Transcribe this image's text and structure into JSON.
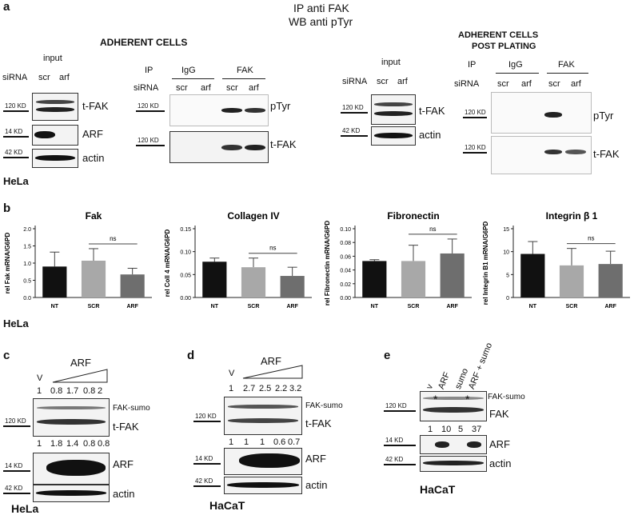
{
  "panel_labels": {
    "a": "a",
    "b": "b",
    "c": "c",
    "d": "d",
    "e": "e"
  },
  "header": {
    "line1": "IP anti FAK",
    "line2": "WB anti pTyr"
  },
  "panel_a": {
    "section_left": "ADHERENT CELLS",
    "section_right_1": "ADHERENT CELLS",
    "section_right_2": "POST PLATING",
    "input": "input",
    "sirna": "siRNA",
    "scr": "scr",
    "arf": "arf",
    "ip": "IP",
    "igg": "IgG",
    "fak": "FAK",
    "kd120": "120 KD",
    "kd14": "14 KD",
    "kd42": "42 KD",
    "tfak": "t-FAK",
    "arf_label": "ARF",
    "actin": "actin",
    "ptyr": "pTyr",
    "cell": "HeLa"
  },
  "panel_b": {
    "cell": "HeLa",
    "ns": "ns",
    "chart_data": [
      {
        "type": "bar",
        "title": "Fak",
        "ylabel": "rel Fak mRNA/G6PD",
        "categories": [
          "NT",
          "SCR",
          "ARF"
        ],
        "values": [
          0.9,
          1.07,
          0.67
        ],
        "errors": [
          0.42,
          0.35,
          0.18
        ],
        "ylim": [
          0,
          2.0
        ],
        "yticks": [
          "0.0",
          "0.5",
          "1.0",
          "1.5",
          "2.0"
        ],
        "colors": [
          "#111111",
          "#a8a8a8",
          "#6e6e6e"
        ]
      },
      {
        "type": "bar",
        "title": "Collagen IV",
        "ylabel": "rel Coll 4 mRNA/G6PD",
        "categories": [
          "NT",
          "SCR",
          "ARF"
        ],
        "values": [
          0.078,
          0.066,
          0.047
        ],
        "errors": [
          0.008,
          0.02,
          0.019
        ],
        "ylim": [
          0,
          0.15
        ],
        "yticks": [
          "0.00",
          "0.05",
          "0.10",
          "0.15"
        ],
        "colors": [
          "#111111",
          "#a8a8a8",
          "#6e6e6e"
        ]
      },
      {
        "type": "bar",
        "title": "Fibronectin",
        "ylabel": "rel Fibronectin mRNA/G6PD",
        "categories": [
          "NT",
          "SCR",
          "ARF"
        ],
        "values": [
          0.053,
          0.053,
          0.064
        ],
        "errors": [
          0.002,
          0.023,
          0.021
        ],
        "ylim": [
          0,
          0.1
        ],
        "yticks": [
          "0.00",
          "0.02",
          "0.04",
          "0.06",
          "0.08",
          "0.10"
        ],
        "colors": [
          "#111111",
          "#a8a8a8",
          "#6e6e6e"
        ]
      },
      {
        "type": "bar",
        "title": "Integrin β 1",
        "ylabel": "rel Integrin B1 mRNA/G6PD",
        "categories": [
          "NT",
          "SCR",
          "ARF"
        ],
        "values": [
          9.5,
          7.0,
          7.3
        ],
        "errors": [
          2.7,
          3.7,
          2.8
        ],
        "ylim": [
          0,
          15
        ],
        "yticks": [
          "0",
          "5",
          "10",
          "15"
        ],
        "colors": [
          "#111111",
          "#a8a8a8",
          "#6e6e6e"
        ]
      }
    ]
  },
  "panel_c": {
    "v": "V",
    "arf": "ARF",
    "quant_top": [
      "1",
      "0.8",
      "1.7",
      "0.8",
      "2"
    ],
    "quant_mid": [
      "1",
      "1.8",
      "1.4",
      "0.8",
      "0.8"
    ],
    "fak_sumo": "FAK-sumo",
    "tfak": "t-FAK",
    "arf_label": "ARF",
    "actin": "actin",
    "kd120": "120 KD",
    "kd14": "14 KD",
    "kd42": "42 KD",
    "cell": "HeLa"
  },
  "panel_d": {
    "v": "V",
    "arf": "ARF",
    "quant_top": [
      "1",
      "2.7",
      "2.5",
      "2.2",
      "3.2"
    ],
    "quant_mid": [
      "1",
      "1",
      "1",
      "0.6",
      "0.7"
    ],
    "fak_sumo": "FAK-sumo",
    "tfak": "t-FAK",
    "arf_label": "ARF",
    "actin": "actin",
    "kd120": "120 KD",
    "kd14": "14 KD",
    "kd42": "42 KD",
    "cell": "HaCaT"
  },
  "panel_e": {
    "lanes": [
      "v",
      "ARF",
      "sumo",
      "ARF + sumo"
    ],
    "quant": [
      "1",
      "10",
      "5",
      "37"
    ],
    "asterisk": "*",
    "fak_sumo": "FAK-sumo",
    "fak": "FAK",
    "arf_label": "ARF",
    "actin": "actin",
    "kd120": "120 KD",
    "kd14": "14 KD",
    "kd42": "42 KD",
    "cell": "HaCaT"
  }
}
